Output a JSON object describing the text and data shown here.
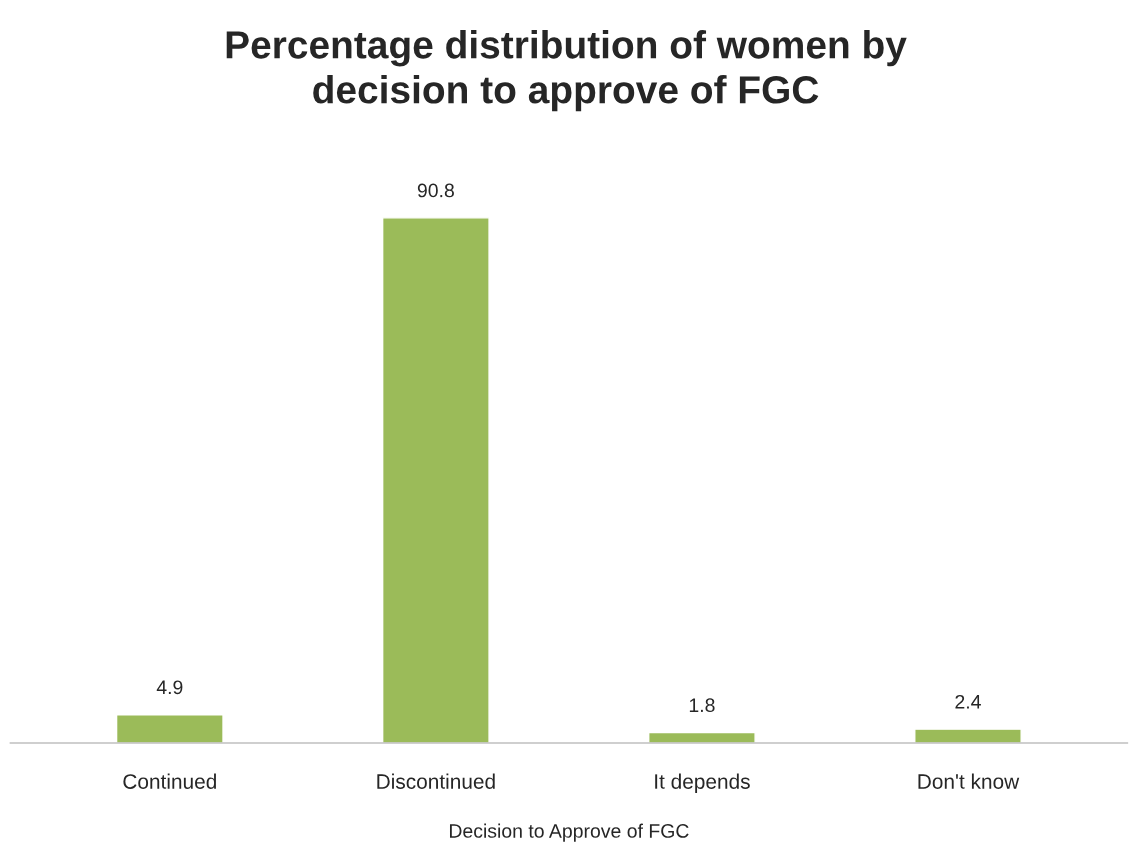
{
  "chart_data": {
    "type": "bar",
    "title": "Percentage distribution of women by\ndecision to approve of FGC",
    "xlabel": "Decision to Approve of FGC",
    "categories": [
      "Continued",
      "Discontinued",
      "It depends",
      "Don't know"
    ],
    "values": [
      4.9,
      90.8,
      1.8,
      2.4
    ],
    "color": "#9bbb59",
    "data_labels": true,
    "tick_labels": "x",
    "grid": false,
    "legend": false
  }
}
